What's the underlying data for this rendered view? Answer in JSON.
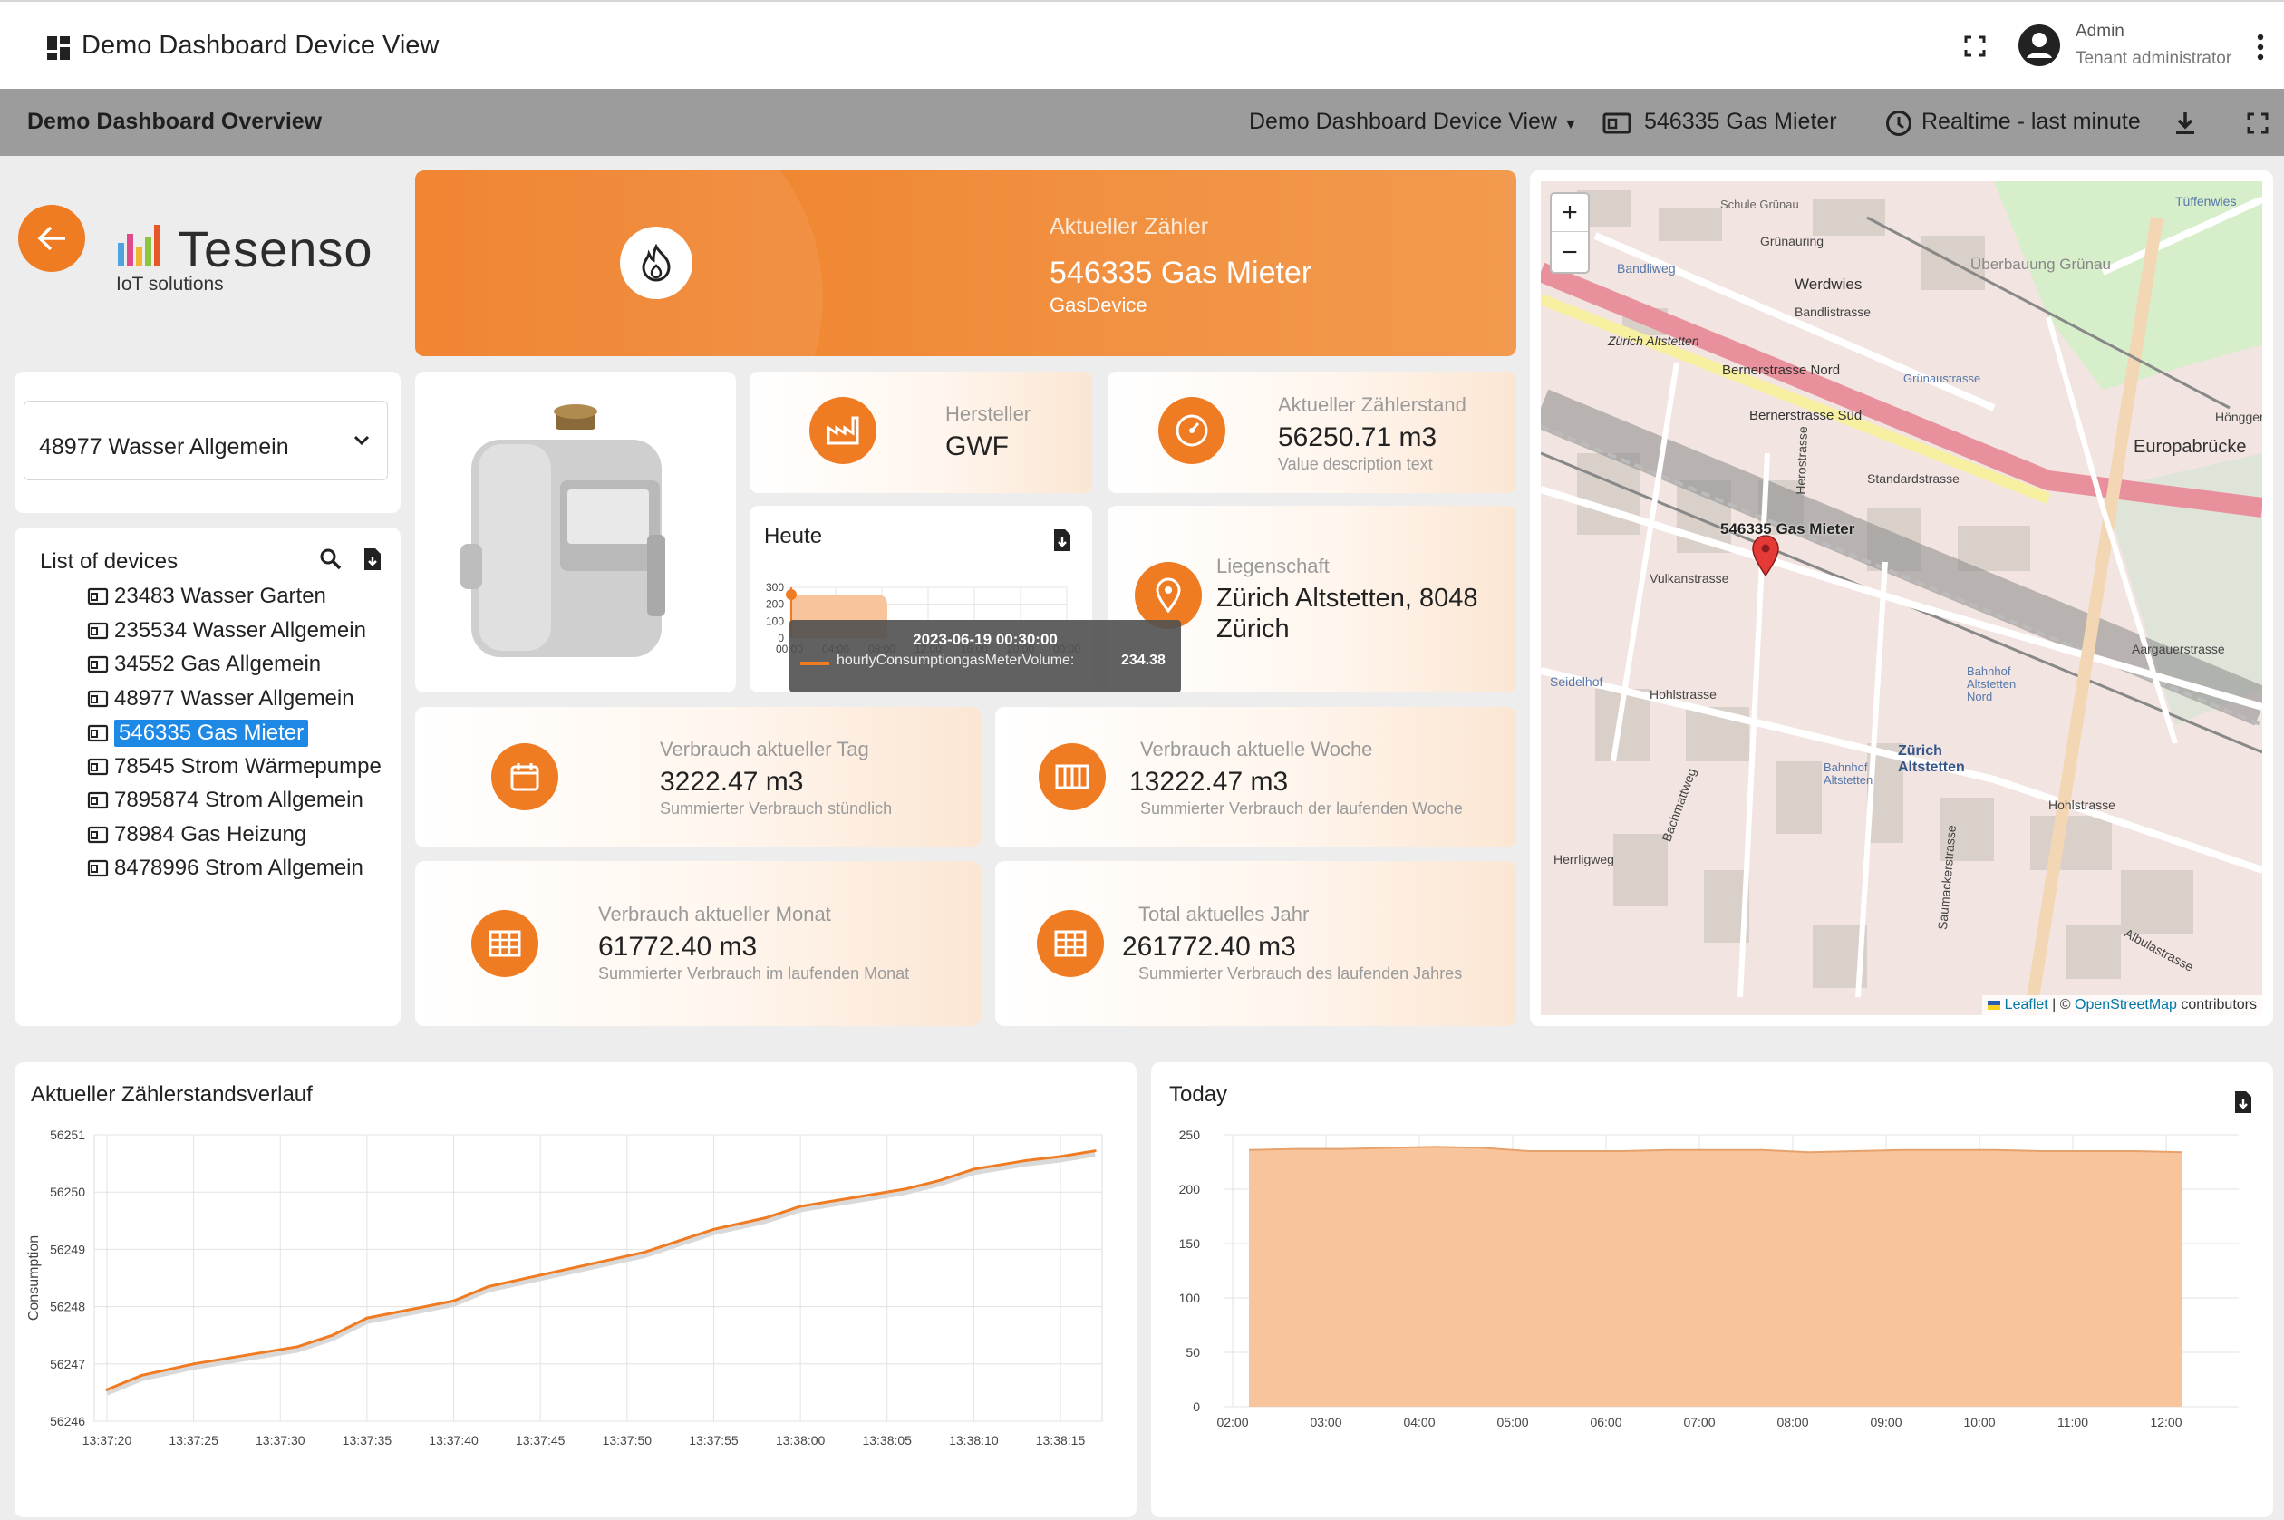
{
  "topbar": {
    "title": "Demo Dashboard Device View",
    "user_name": "Admin",
    "user_role": "Tenant administrator"
  },
  "toolbar": {
    "title": "Demo Dashboard Overview",
    "state_select": "Demo Dashboard Device View",
    "entity": "546335 Gas Mieter",
    "timewindow": "Realtime - last minute"
  },
  "logo": {
    "name": "Tesenso",
    "tagline": "IoT solutions"
  },
  "device_select": {
    "value": "48977 Wasser Allgemein"
  },
  "device_list": {
    "title": "List of devices",
    "items": [
      "23483 Wasser Garten",
      "235534 Wasser Allgemein",
      "34552 Gas Allgemein",
      "48977 Wasser Allgemein",
      "546335 Gas Mieter",
      "78545 Strom Wärmepumpe",
      "7895874 Strom Allgemein",
      "78984 Gas Heizung",
      "8478996 Strom Allgemein"
    ],
    "selected": "546335 Gas Mieter"
  },
  "header_card": {
    "label": "Aktueller Zähler",
    "name": "546335 Gas Mieter",
    "type": "GasDevice"
  },
  "hersteller": {
    "label": "Hersteller",
    "value": "GWF"
  },
  "zaehlerstand": {
    "label": "Aktueller Zählerstand",
    "value": "56250.71 m3",
    "sub": "Value description text"
  },
  "heute": {
    "title": "Heute",
    "yticks": [
      "300",
      "200",
      "100",
      "0"
    ],
    "xticks": [
      "00:00",
      "04:00",
      "08:00",
      "12:00",
      "16:00",
      "20:00",
      "00:00"
    ],
    "tooltip_time": "2023-06-19 00:30:00",
    "tooltip_series": "hourlyConsumptiongasMeterVolume:",
    "tooltip_value": "234.38"
  },
  "liegenschaft": {
    "label": "Liegenschaft",
    "value_line1": "Zürich Altstetten, 8048",
    "value_line2": "Zürich"
  },
  "tag": {
    "label": "Verbrauch aktueller Tag",
    "value": "3222.47 m3",
    "sub": "Summierter Verbrauch stündlich"
  },
  "woche": {
    "label": "Verbrauch aktuelle Woche",
    "value": "13222.47 m3",
    "sub": "Summierter Verbrauch der laufenden Woche"
  },
  "monat": {
    "label": "Verbrauch aktueller Monat",
    "value": "61772.40 m3",
    "sub": "Summierter Verbrauch im laufenden Monat"
  },
  "jahr": {
    "label": "Total aktuelles Jahr",
    "value": "261772.40 m3",
    "sub": "Summierter Verbrauch des laufenden Jahres"
  },
  "map": {
    "marker_label": "546335 Gas Mieter",
    "zoom_in": "+",
    "zoom_out": "−",
    "attribution_leaflet": "Leaflet",
    "attribution_sep": " | © ",
    "attribution_osm": "OpenStreetMap",
    "attribution_tail": " contributors",
    "streets": [
      "Bandliweg",
      "Schule Grünau",
      "Grünauring",
      "Werdwies",
      "Überbauung Grünau",
      "Bandlistrasse",
      "Zürich Altstetten",
      "Bernerstrasse Nord",
      "Bernerstrasse Süd",
      "Grünaustrasse",
      "Europabrücke",
      "Standardstrasse",
      "Herostrasse",
      "Vulkanstrasse",
      "Seidelhof",
      "Hohlstrasse",
      "Bahnhof Altstetten Nord",
      "Zürich Altstetten",
      "Bahnhof Altstetten",
      "Aargauerstrasse",
      "Herrligweg",
      "Bachmattweg",
      "Saumackerstrasse",
      "Hohlstrasse",
      "Albulastrasse",
      "Tüffenwies",
      "Hönggerstrasse"
    ]
  },
  "colors": {
    "accent": "#ef7b22",
    "toolbar": "#9c9c9c",
    "selected": "#1e88e5",
    "area": "#f8c49c"
  },
  "chart_data": [
    {
      "type": "line",
      "title": "Aktueller Zählerstandsverlauf",
      "ylabel": "Consumption",
      "xlabel": "",
      "ylim": [
        56246,
        56251
      ],
      "yticks": [
        "56251",
        "56250",
        "56249",
        "56248",
        "56247",
        "56246"
      ],
      "xticks": [
        "13:37:20",
        "13:37:25",
        "13:37:30",
        "13:37:35",
        "13:37:40",
        "13:37:45",
        "13:37:50",
        "13:37:55",
        "13:38:00",
        "13:38:05",
        "13:38:10",
        "13:38:15"
      ],
      "x": [
        "13:37:20",
        "13:37:22",
        "13:37:25",
        "13:37:28",
        "13:37:31",
        "13:37:33",
        "13:37:35",
        "13:37:38",
        "13:37:40",
        "13:37:42",
        "13:37:45",
        "13:37:48",
        "13:37:51",
        "13:37:53",
        "13:37:55",
        "13:37:58",
        "13:38:00",
        "13:38:03",
        "13:38:06",
        "13:38:08",
        "13:38:10",
        "13:38:13",
        "13:38:15",
        "13:38:17"
      ],
      "series": [
        {
          "values": [
            56246.55,
            56246.8,
            56247.0,
            56247.15,
            56247.3,
            56247.5,
            56247.8,
            56247.98,
            56248.1,
            56248.35,
            56248.55,
            56248.75,
            56248.95,
            56249.15,
            56249.35,
            56249.55,
            56249.75,
            56249.9,
            56250.05,
            56250.2,
            56250.4,
            56250.55,
            56250.62,
            56250.72
          ]
        }
      ]
    },
    {
      "type": "area",
      "title": "Today",
      "xlabel": "",
      "ylabel": "",
      "ylim": [
        0,
        250
      ],
      "yticks": [
        "250",
        "200",
        "150",
        "100",
        "50",
        "0"
      ],
      "xticks": [
        "02:00",
        "03:00",
        "04:00",
        "05:00",
        "06:00",
        "07:00",
        "08:00",
        "09:00",
        "10:00",
        "11:00",
        "12:00"
      ],
      "x": [
        "02:00",
        "02:30",
        "03:00",
        "03:30",
        "04:00",
        "04:30",
        "05:00",
        "05:30",
        "06:00",
        "06:30",
        "07:00",
        "07:30",
        "08:00",
        "08:30",
        "09:00",
        "09:30",
        "10:00",
        "10:30",
        "11:00",
        "11:30",
        "12:00"
      ],
      "series": [
        {
          "values": [
            236,
            237,
            237,
            238,
            239,
            238,
            235,
            235,
            235,
            236,
            236,
            236,
            234,
            235,
            236,
            236,
            236,
            235,
            235,
            235,
            234
          ]
        }
      ]
    }
  ]
}
